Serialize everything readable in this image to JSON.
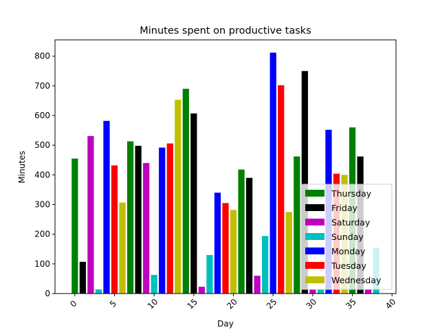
{
  "chart_data": {
    "type": "bar",
    "title": "Minutes spent on productive tasks",
    "xlabel": "Day",
    "ylabel": "Minutes",
    "xlim": [
      -2.5,
      40.5
    ],
    "ylim": [
      0,
      855
    ],
    "xticks": [
      0,
      5,
      10,
      15,
      20,
      25,
      30,
      35,
      40
    ],
    "yticks": [
      0,
      100,
      200,
      300,
      400,
      500,
      600,
      700,
      800
    ],
    "grid": false,
    "legend_position": "lower-right",
    "series": [
      {
        "name": "Thursday",
        "color": "#008000",
        "x": [
          0,
          7,
          14,
          21,
          28,
          35
        ],
        "values": [
          455,
          513,
          690,
          418,
          462,
          560
        ]
      },
      {
        "name": "Friday",
        "color": "#000000",
        "x": [
          1,
          8,
          15,
          22,
          29,
          36
        ],
        "values": [
          107,
          498,
          607,
          390,
          750,
          462
        ]
      },
      {
        "name": "Saturday",
        "color": "#bf00bf",
        "x": [
          2,
          9,
          16,
          23,
          30,
          37
        ],
        "values": [
          531,
          440,
          23,
          60,
          15,
          15
        ]
      },
      {
        "name": "Sunday",
        "color": "#00bfbf",
        "x": [
          3,
          10,
          17,
          24,
          31,
          38
        ],
        "values": [
          14,
          63,
          130,
          194,
          15,
          155
        ]
      },
      {
        "name": "Monday",
        "color": "#0000ff",
        "x": [
          4,
          11,
          18,
          25,
          32
        ],
        "values": [
          582,
          492,
          340,
          812,
          552
        ]
      },
      {
        "name": "Tuesday",
        "color": "#ff0000",
        "x": [
          5,
          12,
          19,
          26,
          33
        ],
        "values": [
          432,
          506,
          305,
          702,
          404
        ]
      },
      {
        "name": "Wednesday",
        "color": "#bfbf00",
        "x": [
          6,
          13,
          20,
          27,
          34
        ],
        "values": [
          307,
          653,
          282,
          275,
          400
        ]
      }
    ]
  }
}
